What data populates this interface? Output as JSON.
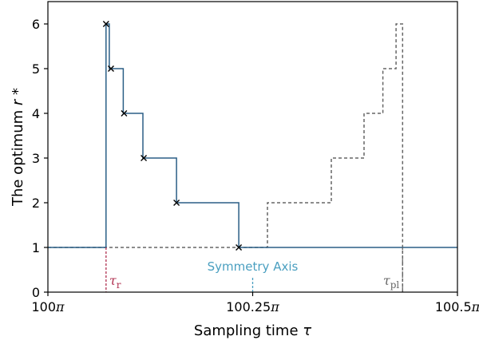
{
  "chart_data": {
    "type": "line",
    "xlabel": "Sampling time τ",
    "ylabel": "The optimum r*",
    "xlim": [
      0,
      0.5
    ],
    "ylim": [
      0,
      6.5
    ],
    "x_ticks": [
      {
        "value": 0,
        "label": "100π"
      },
      {
        "value": 0.25,
        "label": "100.25π"
      },
      {
        "value": 0.5,
        "label": "100.5π"
      }
    ],
    "y_ticks": [
      0,
      1,
      2,
      3,
      4,
      5,
      6
    ],
    "x_unit": "π",
    "x_offset_label": "100",
    "series": [
      {
        "style": "solid-step",
        "color": "#2b5f86",
        "points": [
          [
            0,
            1
          ],
          [
            0.071,
            1
          ],
          [
            0.071,
            6
          ],
          [
            0.075,
            6
          ],
          [
            0.075,
            5
          ],
          [
            0.092,
            5
          ],
          [
            0.092,
            4
          ],
          [
            0.116,
            4
          ],
          [
            0.116,
            3
          ],
          [
            0.157,
            3
          ],
          [
            0.157,
            2
          ],
          [
            0.233,
            2
          ],
          [
            0.233,
            1
          ],
          [
            0.5,
            1
          ]
        ],
        "markers": [
          [
            0.071,
            6
          ],
          [
            0.077,
            5
          ],
          [
            0.093,
            4
          ],
          [
            0.117,
            3
          ],
          [
            0.157,
            2
          ],
          [
            0.233,
            1
          ]
        ]
      },
      {
        "style": "dashed-step",
        "color": "#666666",
        "points": [
          [
            0,
            1
          ],
          [
            0.268,
            1
          ],
          [
            0.268,
            2
          ],
          [
            0.346,
            2
          ],
          [
            0.346,
            3
          ],
          [
            0.386,
            3
          ],
          [
            0.386,
            4
          ],
          [
            0.409,
            4
          ],
          [
            0.409,
            5
          ],
          [
            0.425,
            5
          ],
          [
            0.425,
            6
          ],
          [
            0.433,
            6
          ],
          [
            0.433,
            0
          ]
        ]
      }
    ],
    "annotations": [
      {
        "text": "τ_r",
        "x": 0.071,
        "color": "#b03050"
      },
      {
        "text": "Symmetry Axis",
        "x": 0.25,
        "color": "#4a9fc0"
      },
      {
        "text": "τ_pl",
        "x": 0.433,
        "color": "#666666"
      }
    ]
  }
}
